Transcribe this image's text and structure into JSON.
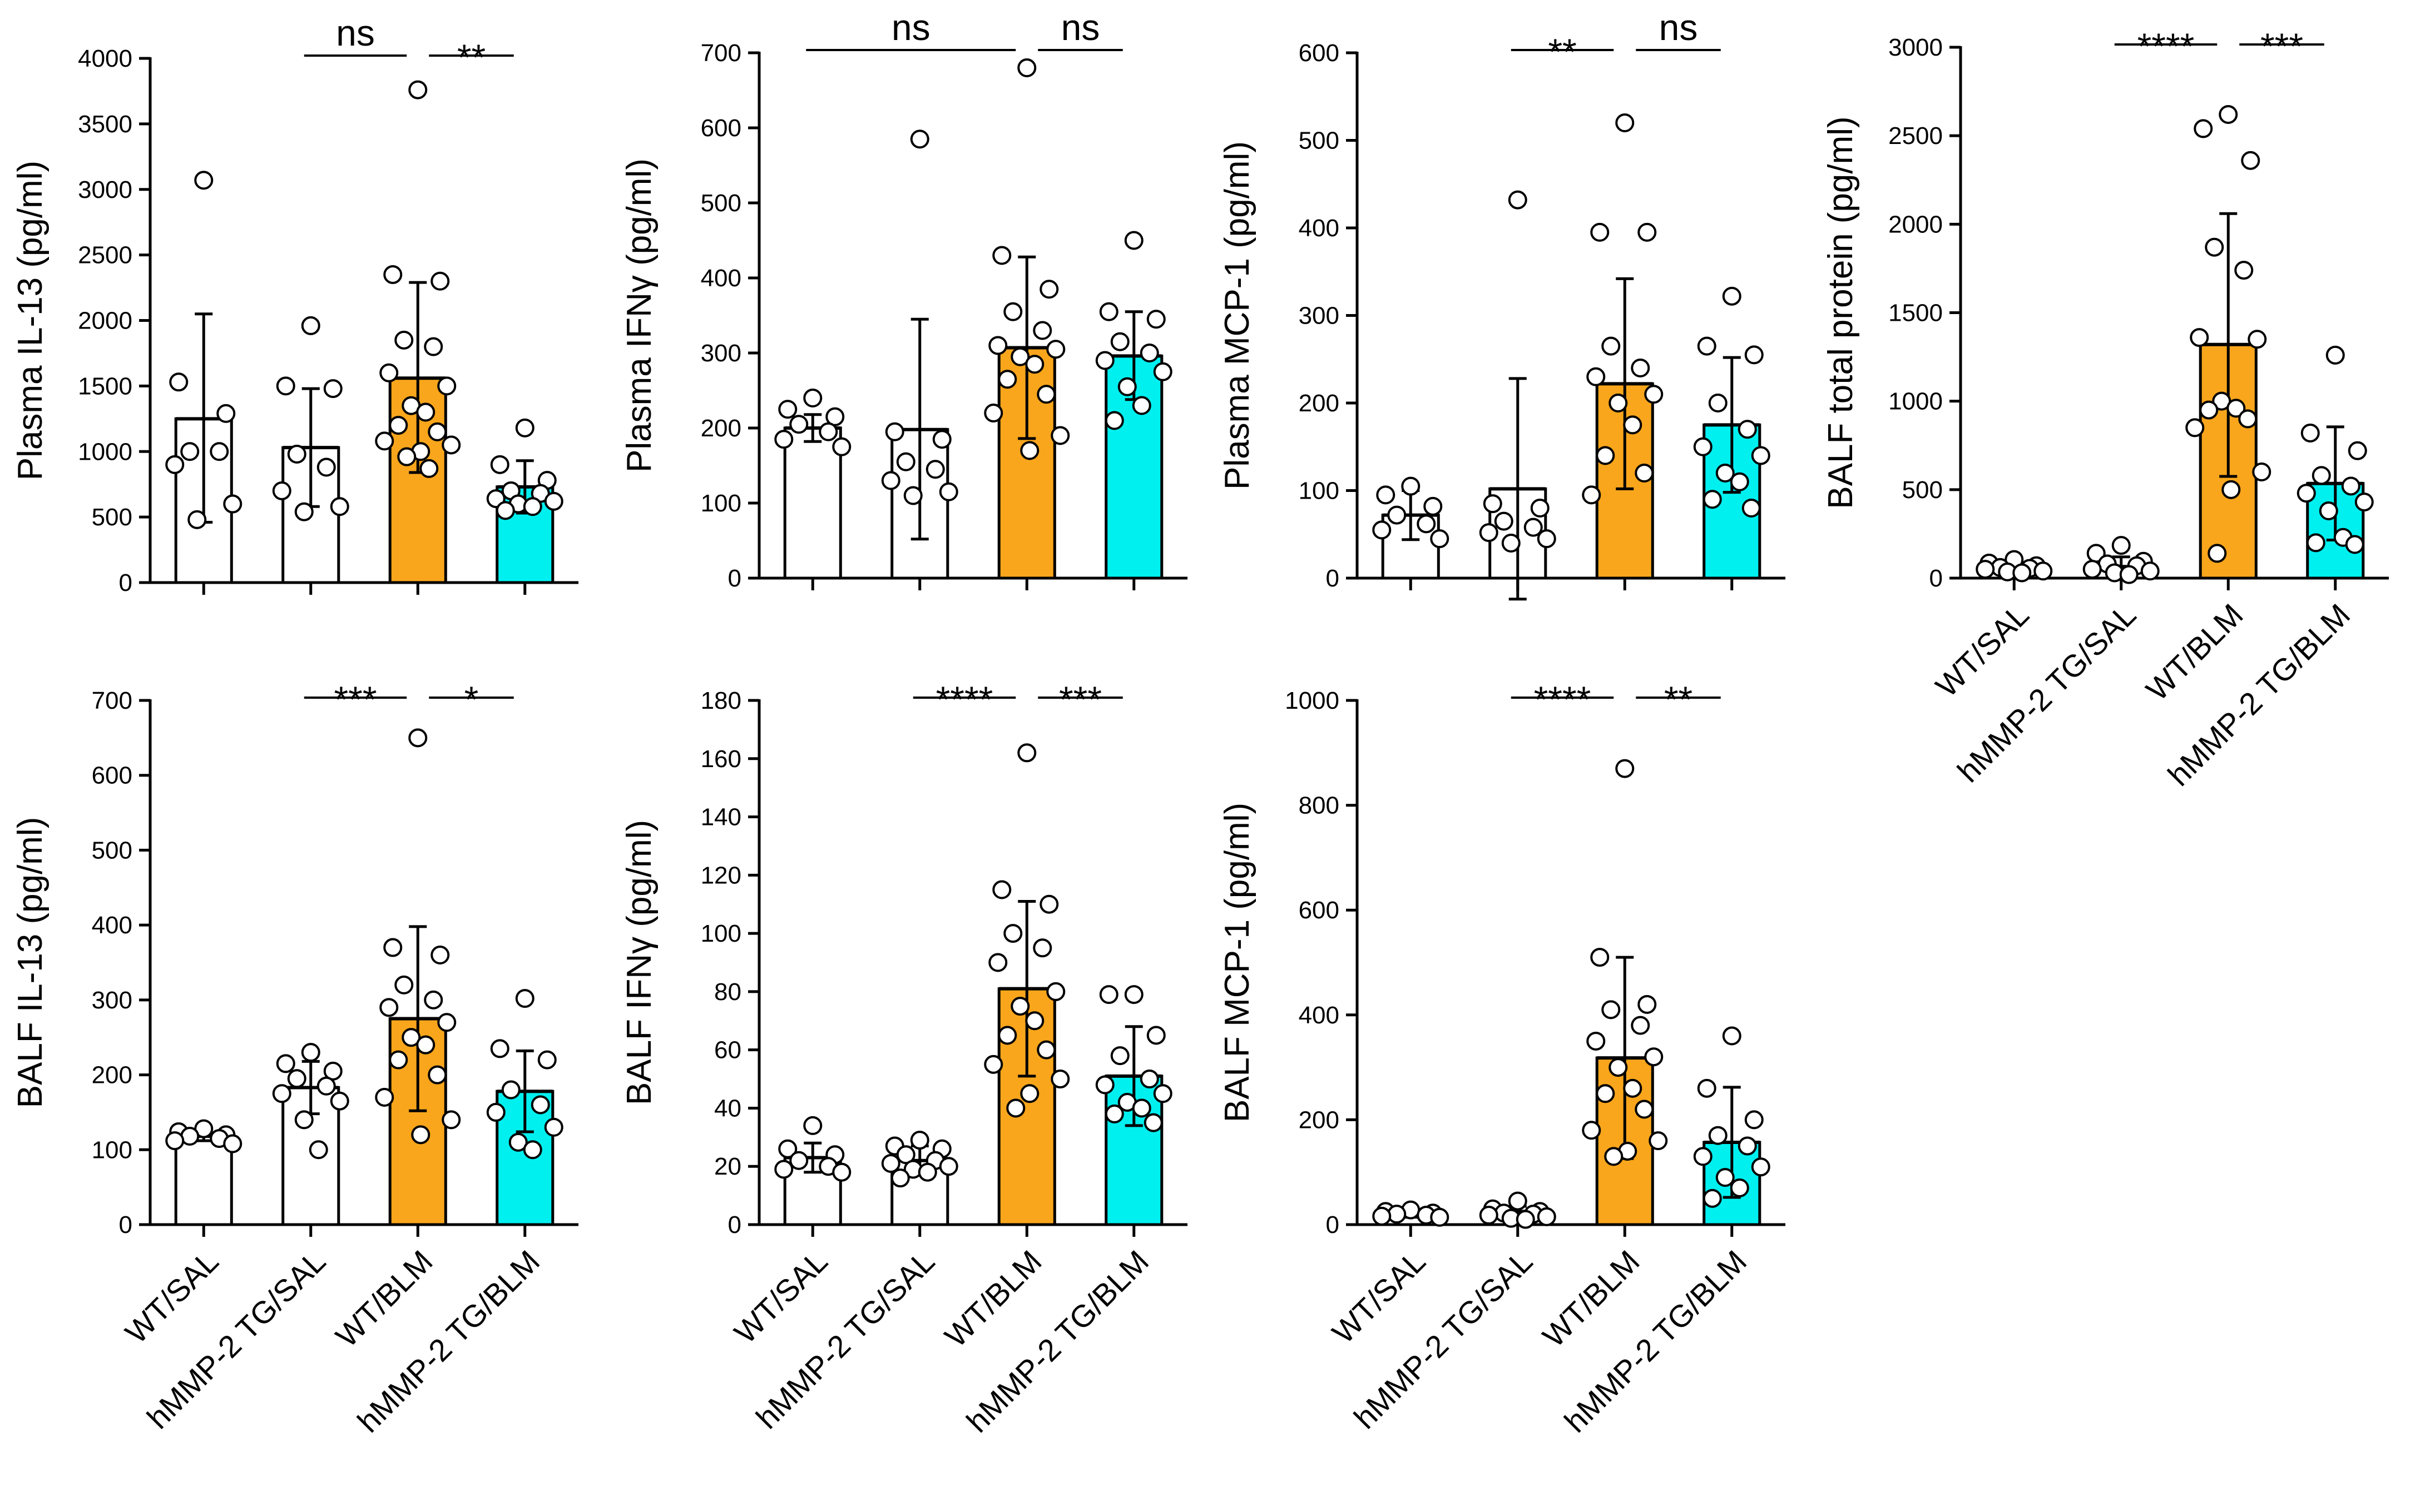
{
  "colors": {
    "bar_fills": [
      "#ffffff",
      "#ffffff",
      "#f9a61c",
      "#00f0f0"
    ],
    "stroke": "#000000",
    "point_fill": "#ffffff"
  },
  "groups": [
    "WT/SAL",
    "hMMP-2 TG/SAL",
    "WT/BLM",
    "hMMP-2 TG/BLM"
  ],
  "chart_data": [
    {
      "id": "plasma-il13",
      "type": "bar",
      "ylabel": "Plasma IL-13 (pg/ml)",
      "ylim": [
        0,
        4000
      ],
      "yticks": [
        "0",
        "500",
        "1000",
        "1500",
        "2000",
        "2500",
        "3000",
        "3500",
        "4000"
      ],
      "categories": [
        "WT/SAL",
        "hMMP-2 TG/SAL",
        "WT/BLM",
        "hMMP-2 TG/BLM"
      ],
      "show_category_labels": false,
      "means": [
        1250,
        1030,
        1560,
        730
      ],
      "sd_upper": [
        2050,
        1480,
        2290,
        930
      ],
      "sd_lower": [
        460,
        580,
        840,
        530
      ],
      "points": [
        [
          3070,
          1530,
          1290,
          1000,
          1000,
          900,
          600,
          480
        ],
        [
          1960,
          1500,
          1480,
          980,
          880,
          700,
          580,
          540
        ],
        [
          3760,
          2350,
          2300,
          1850,
          1800,
          1600,
          1500,
          1350,
          1300,
          1200,
          1150,
          1080,
          1050,
          1000,
          960,
          870
        ],
        [
          1180,
          900,
          780,
          700,
          680,
          640,
          620,
          600,
          580,
          550
        ]
      ],
      "significance": [
        {
          "groups": [
            1,
            2
          ],
          "label": "ns"
        },
        {
          "groups": [
            2,
            3
          ],
          "label": "**"
        }
      ]
    },
    {
      "id": "plasma-ifng",
      "type": "bar",
      "ylabel": "Plasma IFNγ (pg/ml)",
      "ylim": [
        0,
        700
      ],
      "yticks": [
        "0",
        "100",
        "200",
        "300",
        "400",
        "500",
        "600",
        "700"
      ],
      "categories": [
        "WT/SAL",
        "hMMP-2 TG/SAL",
        "WT/BLM",
        "hMMP-2 TG/BLM"
      ],
      "show_category_labels": false,
      "means": [
        200,
        198,
        307,
        296
      ],
      "sd_upper": [
        218,
        345,
        428,
        355
      ],
      "sd_lower": [
        182,
        52,
        186,
        238
      ],
      "points": [
        [
          240,
          225,
          215,
          205,
          195,
          185,
          175
        ],
        [
          585,
          195,
          185,
          155,
          145,
          130,
          115,
          110
        ],
        [
          680,
          430,
          385,
          355,
          330,
          310,
          305,
          295,
          285,
          265,
          245,
          220,
          190,
          170
        ],
        [
          450,
          355,
          345,
          315,
          300,
          290,
          275,
          255,
          230,
          210
        ]
      ],
      "significance": [
        {
          "groups": [
            0,
            2
          ],
          "label": "ns"
        },
        {
          "groups": [
            2,
            3
          ],
          "label": "ns"
        }
      ]
    },
    {
      "id": "plasma-mcp1",
      "type": "bar",
      "ylabel": "Plasma MCP-1 (pg/ml)",
      "ylim": [
        0,
        600
      ],
      "yticks": [
        "0",
        "100",
        "200",
        "300",
        "400",
        "500",
        "600"
      ],
      "categories": [
        "WT/SAL",
        "hMMP-2 TG/SAL",
        "WT/BLM",
        "hMMP-2 TG/BLM"
      ],
      "show_category_labels": false,
      "means": [
        72,
        102,
        222,
        175
      ],
      "sd_upper": [
        100,
        228,
        342,
        252
      ],
      "sd_lower": [
        44,
        -24,
        102,
        98
      ],
      "points": [
        [
          105,
          95,
          82,
          72,
          62,
          55,
          45
        ],
        [
          432,
          85,
          80,
          65,
          58,
          52,
          45,
          40
        ],
        [
          520,
          395,
          395,
          265,
          240,
          230,
          210,
          200,
          175,
          140,
          120,
          95
        ],
        [
          322,
          265,
          255,
          200,
          170,
          150,
          140,
          120,
          110,
          90,
          80
        ]
      ],
      "significance": [
        {
          "groups": [
            1,
            2
          ],
          "label": "**"
        },
        {
          "groups": [
            2,
            3
          ],
          "label": "ns"
        }
      ]
    },
    {
      "id": "balf-total-protein",
      "type": "bar",
      "ylabel": "BALF total protein (pg/ml)",
      "ylim": [
        0,
        3000
      ],
      "yticks": [
        "0",
        "500",
        "1000",
        "1500",
        "2000",
        "2500",
        "3000"
      ],
      "categories": [
        "WT/SAL",
        "hMMP-2 TG/SAL",
        "WT/BLM",
        "hMMP-2 TG/BLM"
      ],
      "show_category_labels": true,
      "means": [
        55,
        65,
        1320,
        535
      ],
      "sd_upper": [
        75,
        120,
        2060,
        855
      ],
      "sd_lower": [
        35,
        15,
        575,
        215
      ],
      "points": [
        [
          105,
          85,
          70,
          60,
          55,
          50,
          40,
          35,
          30
        ],
        [
          185,
          140,
          95,
          80,
          70,
          50,
          40,
          30,
          20
        ],
        [
          2620,
          2540,
          2360,
          1870,
          1740,
          1360,
          1350,
          1000,
          960,
          950,
          900,
          850,
          600,
          500,
          140
        ],
        [
          1260,
          820,
          720,
          580,
          520,
          480,
          430,
          380,
          230,
          200,
          190
        ]
      ],
      "significance": [
        {
          "groups": [
            1,
            2
          ],
          "label": "****"
        },
        {
          "groups": [
            2,
            3
          ],
          "label": "***"
        }
      ]
    },
    {
      "id": "balf-il13",
      "type": "bar",
      "ylabel": "BALF IL-13 (pg/ml)",
      "ylim": [
        0,
        700
      ],
      "yticks": [
        "0",
        "100",
        "200",
        "300",
        "400",
        "500",
        "600",
        "700"
      ],
      "categories": [
        "WT/SAL",
        "hMMP-2 TG/SAL",
        "WT/BLM",
        "hMMP-2 TG/BLM"
      ],
      "show_category_labels": true,
      "means": [
        118,
        183,
        275,
        178
      ],
      "sd_upper": [
        124,
        218,
        398,
        232
      ],
      "sd_lower": [
        112,
        148,
        152,
        124
      ],
      "points": [
        [
          128,
          124,
          120,
          118,
          115,
          112,
          108
        ],
        [
          230,
          215,
          205,
          195,
          185,
          175,
          165,
          140,
          100
        ],
        [
          650,
          370,
          360,
          320,
          300,
          290,
          270,
          250,
          240,
          220,
          200,
          170,
          140,
          120
        ],
        [
          302,
          235,
          220,
          180,
          160,
          150,
          130,
          110,
          100
        ]
      ],
      "significance": [
        {
          "groups": [
            1,
            2
          ],
          "label": "***"
        },
        {
          "groups": [
            2,
            3
          ],
          "label": "*"
        }
      ]
    },
    {
      "id": "balf-ifng",
      "type": "bar",
      "ylabel": "BALF IFNγ (pg/ml)",
      "ylim": [
        0,
        180
      ],
      "yticks": [
        "0",
        "20",
        "40",
        "60",
        "80",
        "100",
        "120",
        "140",
        "160",
        "180"
      ],
      "categories": [
        "WT/SAL",
        "hMMP-2 TG/SAL",
        "WT/BLM",
        "hMMP-2 TG/BLM"
      ],
      "show_category_labels": true,
      "means": [
        23,
        22,
        81,
        51
      ],
      "sd_upper": [
        28,
        27,
        111,
        68
      ],
      "sd_lower": [
        18,
        17,
        51,
        34
      ],
      "points": [
        [
          34,
          26,
          24,
          22,
          20,
          19,
          18
        ],
        [
          29,
          27,
          26,
          24,
          22,
          21,
          20,
          19,
          18,
          16
        ],
        [
          162,
          115,
          110,
          100,
          95,
          90,
          80,
          75,
          70,
          65,
          60,
          55,
          50,
          45,
          40
        ],
        [
          79,
          79,
          65,
          58,
          50,
          48,
          45,
          42,
          40,
          38,
          35
        ]
      ],
      "significance": [
        {
          "groups": [
            1,
            2
          ],
          "label": "****"
        },
        {
          "groups": [
            2,
            3
          ],
          "label": "***"
        }
      ]
    },
    {
      "id": "balf-mcp1",
      "type": "bar",
      "ylabel": "BALF MCP-1 (pg/ml)",
      "ylim": [
        0,
        1000
      ],
      "yticks": [
        "0",
        "200",
        "400",
        "600",
        "800",
        "1000"
      ],
      "categories": [
        "WT/SAL",
        "hMMP-2 TG/SAL",
        "WT/BLM",
        "hMMP-2 TG/BLM"
      ],
      "show_category_labels": true,
      "means": [
        22,
        25,
        318,
        157
      ],
      "sd_upper": [
        30,
        35,
        510,
        262
      ],
      "sd_lower": [
        14,
        15,
        126,
        52
      ],
      "points": [
        [
          28,
          25,
          22,
          20,
          18,
          16,
          14
        ],
        [
          45,
          30,
          25,
          22,
          20,
          18,
          15,
          12,
          10
        ],
        [
          870,
          510,
          420,
          410,
          380,
          350,
          320,
          300,
          260,
          250,
          220,
          180,
          160,
          140,
          130
        ],
        [
          360,
          260,
          200,
          170,
          150,
          130,
          110,
          90,
          70,
          50
        ]
      ],
      "significance": [
        {
          "groups": [
            1,
            2
          ],
          "label": "****"
        },
        {
          "groups": [
            2,
            3
          ],
          "label": "**"
        }
      ]
    }
  ]
}
